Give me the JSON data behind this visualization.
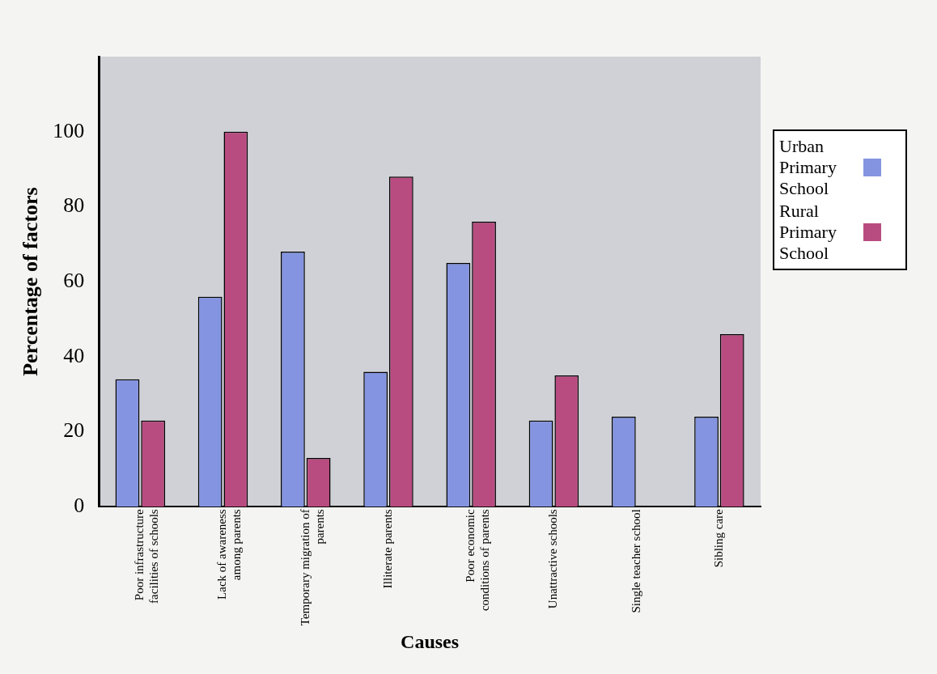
{
  "chart_data": {
    "type": "bar",
    "xlabel": "Causes",
    "ylabel": "Percentage of factors",
    "categories": [
      "Poor infrastructure facilities of schools",
      "Lack of awareness among parents",
      "Temporary migration of parents",
      "Illiterate parents",
      "Poor economic conditions of parents",
      "Unattractive schools",
      "Single teacher school",
      "Sibling care"
    ],
    "series": [
      {
        "name": "Urban Primary School",
        "color": "#8494e0",
        "values": [
          34,
          56,
          68,
          36,
          65,
          23,
          24,
          24
        ]
      },
      {
        "name": "Rural Primary School",
        "color": "#b84c80",
        "values": [
          23,
          100,
          13,
          88,
          76,
          35,
          null,
          46
        ]
      }
    ],
    "ylim": [
      0,
      120
    ],
    "yticks": [
      0,
      20,
      40,
      60,
      80,
      100
    ],
    "grid": false,
    "legend": "right"
  }
}
